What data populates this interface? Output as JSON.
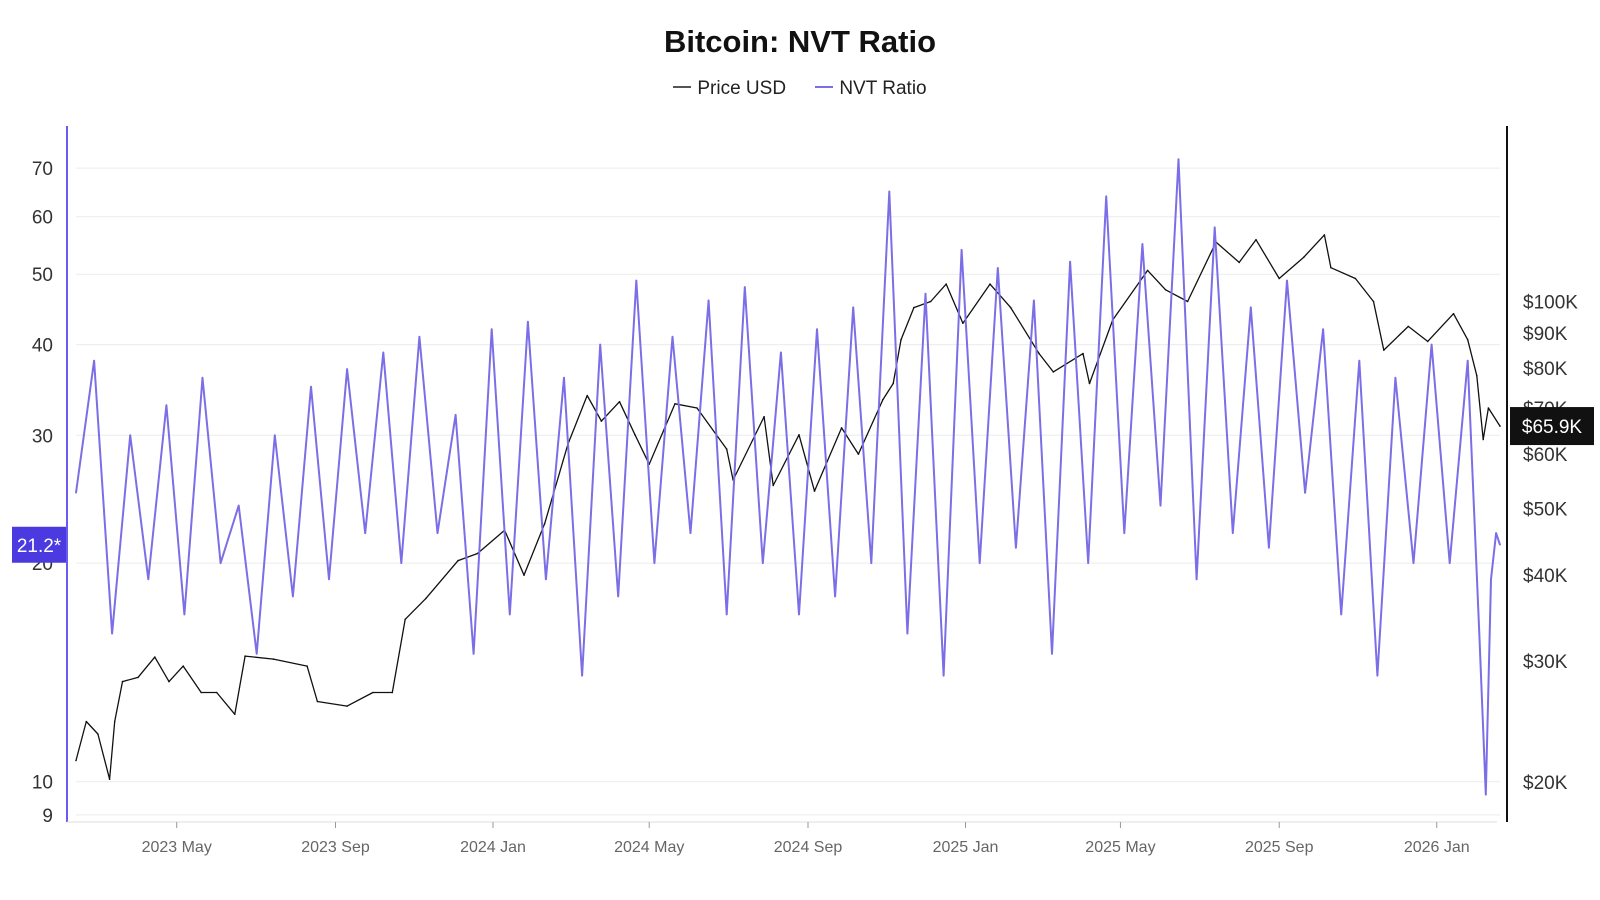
{
  "chart_data": {
    "type": "line",
    "title": "Bitcoin: NVT Ratio",
    "legend": {
      "placement": "top-center"
    },
    "x_range": [
      "2023-02-12",
      "2026-02-19"
    ],
    "x_ticks": [
      {
        "date": "2023-05-01",
        "label": "2023 May"
      },
      {
        "date": "2023-09-01",
        "label": "2023 Sep"
      },
      {
        "date": "2024-01-01",
        "label": "2024 Jan"
      },
      {
        "date": "2024-05-01",
        "label": "2024 May"
      },
      {
        "date": "2024-09-01",
        "label": "2024 Sep"
      },
      {
        "date": "2025-01-01",
        "label": "2025 Jan"
      },
      {
        "date": "2025-05-01",
        "label": "2025 May"
      },
      {
        "date": "2025-09-01",
        "label": "2025 Sep"
      },
      {
        "date": "2026-01-01",
        "label": "2026 Jan"
      }
    ],
    "left_axis": {
      "scale": "log",
      "range": [
        8.8,
        80
      ],
      "ticks": [
        9,
        10,
        20,
        30,
        40,
        50,
        60,
        70
      ],
      "current_value_label": "21.2*",
      "current_value": 21.2
    },
    "right_axis": {
      "scale": "log",
      "range": [
        17500,
        180000
      ],
      "ticks": [
        {
          "value": 20000,
          "label": "$20K"
        },
        {
          "value": 30000,
          "label": "$30K"
        },
        {
          "value": 40000,
          "label": "$40K"
        },
        {
          "value": 50000,
          "label": "$50K"
        },
        {
          "value": 60000,
          "label": "$60K"
        },
        {
          "value": 70000,
          "label": "$70K"
        },
        {
          "value": 80000,
          "label": "$80K"
        },
        {
          "value": 90000,
          "label": "$90K"
        },
        {
          "value": 100000,
          "label": "$100K"
        }
      ],
      "current_value_label": "$65.9K",
      "current_value": 65900
    },
    "grid": true,
    "series": [
      {
        "name": "Price USD",
        "axis": "right",
        "color": "#111111",
        "points": [
          [
            "2023-02-12",
            21500
          ],
          [
            "2023-02-20",
            24500
          ],
          [
            "2023-03-01",
            23500
          ],
          [
            "2023-03-10",
            20200
          ],
          [
            "2023-03-14",
            24500
          ],
          [
            "2023-03-20",
            28000
          ],
          [
            "2023-04-01",
            28400
          ],
          [
            "2023-04-14",
            30400
          ],
          [
            "2023-04-25",
            28000
          ],
          [
            "2023-05-06",
            29500
          ],
          [
            "2023-05-20",
            27000
          ],
          [
            "2023-06-01",
            27000
          ],
          [
            "2023-06-15",
            25100
          ],
          [
            "2023-06-23",
            30500
          ],
          [
            "2023-07-15",
            30200
          ],
          [
            "2023-08-10",
            29500
          ],
          [
            "2023-08-18",
            26200
          ],
          [
            "2023-09-10",
            25800
          ],
          [
            "2023-09-30",
            27000
          ],
          [
            "2023-10-15",
            27000
          ],
          [
            "2023-10-25",
            34500
          ],
          [
            "2023-11-10",
            37000
          ],
          [
            "2023-12-05",
            42000
          ],
          [
            "2023-12-20",
            43000
          ],
          [
            "2024-01-10",
            46500
          ],
          [
            "2024-01-25",
            40000
          ],
          [
            "2024-02-10",
            47500
          ],
          [
            "2024-02-28",
            62000
          ],
          [
            "2024-03-14",
            73000
          ],
          [
            "2024-03-25",
            67000
          ],
          [
            "2024-04-08",
            71500
          ],
          [
            "2024-04-20",
            64000
          ],
          [
            "2024-05-01",
            58000
          ],
          [
            "2024-05-21",
            71000
          ],
          [
            "2024-06-07",
            70000
          ],
          [
            "2024-06-30",
            61000
          ],
          [
            "2024-07-05",
            55000
          ],
          [
            "2024-07-29",
            68000
          ],
          [
            "2024-08-05",
            54000
          ],
          [
            "2024-08-25",
            64000
          ],
          [
            "2024-09-06",
            53000
          ],
          [
            "2024-09-27",
            65500
          ],
          [
            "2024-10-10",
            60000
          ],
          [
            "2024-10-29",
            72000
          ],
          [
            "2024-11-06",
            76000
          ],
          [
            "2024-11-12",
            88000
          ],
          [
            "2024-11-22",
            98000
          ],
          [
            "2024-12-05",
            100000
          ],
          [
            "2024-12-17",
            106000
          ],
          [
            "2024-12-30",
            93000
          ],
          [
            "2025-01-20",
            106000
          ],
          [
            "2025-02-05",
            98000
          ],
          [
            "2025-02-27",
            84000
          ],
          [
            "2025-03-10",
            79000
          ],
          [
            "2025-04-02",
            84000
          ],
          [
            "2025-04-07",
            76000
          ],
          [
            "2025-04-25",
            94000
          ],
          [
            "2025-05-22",
            111000
          ],
          [
            "2025-06-05",
            104000
          ],
          [
            "2025-06-22",
            100000
          ],
          [
            "2025-07-14",
            122000
          ],
          [
            "2025-08-01",
            114000
          ],
          [
            "2025-08-14",
            123000
          ],
          [
            "2025-09-01",
            108000
          ],
          [
            "2025-09-20",
            116000
          ],
          [
            "2025-10-06",
            125000
          ],
          [
            "2025-10-11",
            112000
          ],
          [
            "2025-10-30",
            108000
          ],
          [
            "2025-11-13",
            100000
          ],
          [
            "2025-11-21",
            85000
          ],
          [
            "2025-12-10",
            92000
          ],
          [
            "2025-12-25",
            87500
          ],
          [
            "2026-01-14",
            96000
          ],
          [
            "2026-01-25",
            88000
          ],
          [
            "2026-02-01",
            78000
          ],
          [
            "2026-02-06",
            63000
          ],
          [
            "2026-02-10",
            70000
          ],
          [
            "2026-02-19",
            65900
          ]
        ]
      },
      {
        "name": "NVT Ratio",
        "axis": "left",
        "color": "#7b6ee6",
        "points": [
          [
            "2023-02-12",
            25
          ],
          [
            "2023-02-26",
            38
          ],
          [
            "2023-03-12",
            16
          ],
          [
            "2023-03-26",
            30
          ],
          [
            "2023-04-09",
            19
          ],
          [
            "2023-04-23",
            33
          ],
          [
            "2023-05-07",
            17
          ],
          [
            "2023-05-21",
            36
          ],
          [
            "2023-06-04",
            20
          ],
          [
            "2023-06-18",
            24
          ],
          [
            "2023-07-02",
            15
          ],
          [
            "2023-07-16",
            30
          ],
          [
            "2023-07-30",
            18
          ],
          [
            "2023-08-13",
            35
          ],
          [
            "2023-08-27",
            19
          ],
          [
            "2023-09-10",
            37
          ],
          [
            "2023-09-24",
            22
          ],
          [
            "2023-10-08",
            39
          ],
          [
            "2023-10-22",
            20
          ],
          [
            "2023-11-05",
            41
          ],
          [
            "2023-11-19",
            22
          ],
          [
            "2023-12-03",
            32
          ],
          [
            "2023-12-17",
            15
          ],
          [
            "2023-12-31",
            42
          ],
          [
            "2024-01-14",
            17
          ],
          [
            "2024-01-28",
            43
          ],
          [
            "2024-02-11",
            19
          ],
          [
            "2024-02-25",
            36
          ],
          [
            "2024-03-10",
            14
          ],
          [
            "2024-03-24",
            40
          ],
          [
            "2024-04-07",
            18
          ],
          [
            "2024-04-21",
            49
          ],
          [
            "2024-05-05",
            20
          ],
          [
            "2024-05-19",
            41
          ],
          [
            "2024-06-02",
            22
          ],
          [
            "2024-06-16",
            46
          ],
          [
            "2024-06-30",
            17
          ],
          [
            "2024-07-14",
            48
          ],
          [
            "2024-07-28",
            20
          ],
          [
            "2024-08-11",
            39
          ],
          [
            "2024-08-25",
            17
          ],
          [
            "2024-09-08",
            42
          ],
          [
            "2024-09-22",
            18
          ],
          [
            "2024-10-06",
            45
          ],
          [
            "2024-10-20",
            20
          ],
          [
            "2024-11-03",
            65
          ],
          [
            "2024-11-17",
            16
          ],
          [
            "2024-12-01",
            47
          ],
          [
            "2024-12-15",
            14
          ],
          [
            "2024-12-29",
            54
          ],
          [
            "2025-01-12",
            20
          ],
          [
            "2025-01-26",
            51
          ],
          [
            "2025-02-09",
            21
          ],
          [
            "2025-02-23",
            46
          ],
          [
            "2025-03-09",
            15
          ],
          [
            "2025-03-23",
            52
          ],
          [
            "2025-04-06",
            20
          ],
          [
            "2025-04-20",
            64
          ],
          [
            "2025-05-04",
            22
          ],
          [
            "2025-05-18",
            55
          ],
          [
            "2025-06-01",
            24
          ],
          [
            "2025-06-15",
            72
          ],
          [
            "2025-06-29",
            19
          ],
          [
            "2025-07-13",
            58
          ],
          [
            "2025-07-27",
            22
          ],
          [
            "2025-08-10",
            45
          ],
          [
            "2025-08-24",
            21
          ],
          [
            "2025-09-07",
            49
          ],
          [
            "2025-09-21",
            25
          ],
          [
            "2025-10-05",
            42
          ],
          [
            "2025-10-19",
            17
          ],
          [
            "2025-11-02",
            38
          ],
          [
            "2025-11-16",
            14
          ],
          [
            "2025-11-30",
            36
          ],
          [
            "2025-12-14",
            20
          ],
          [
            "2025-12-28",
            40
          ],
          [
            "2026-01-11",
            20
          ],
          [
            "2026-01-25",
            38
          ],
          [
            "2026-02-03",
            16
          ],
          [
            "2026-02-08",
            9.6
          ],
          [
            "2026-02-12",
            19
          ],
          [
            "2026-02-16",
            22
          ],
          [
            "2026-02-19",
            21.2
          ]
        ]
      }
    ]
  }
}
